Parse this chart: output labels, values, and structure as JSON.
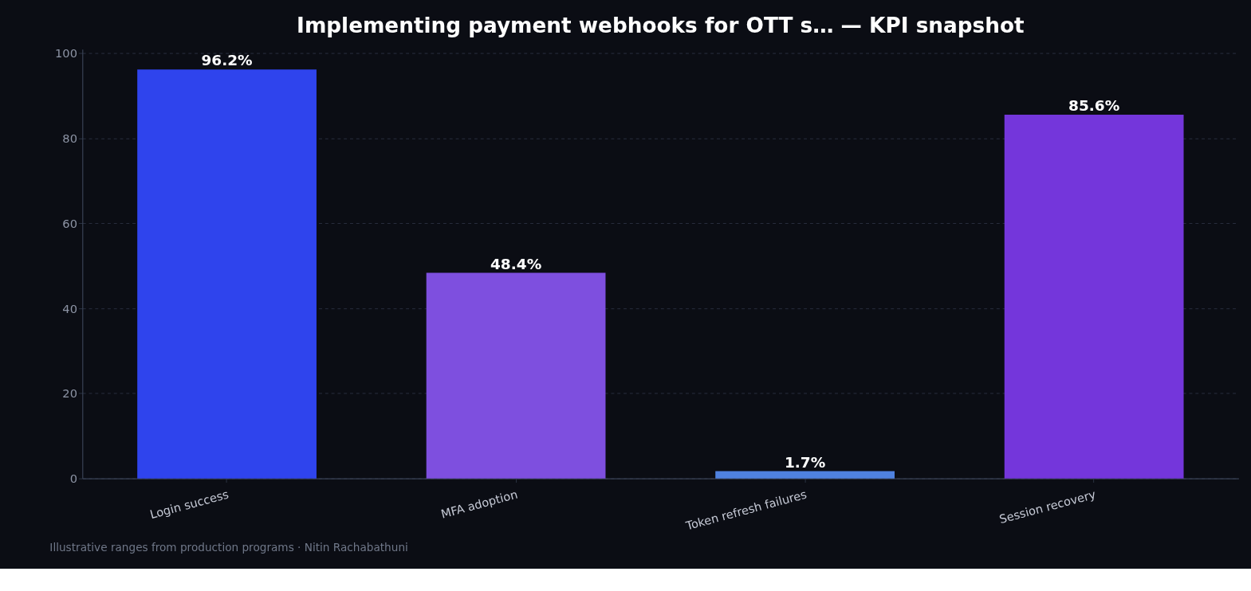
{
  "chart_data": {
    "type": "bar",
    "title": "Implementing payment webhooks for OTT s… — KPI snapshot",
    "categories": [
      "Login success",
      "MFA adoption",
      "Token refresh failures",
      "Session recovery"
    ],
    "values": [
      96.2,
      48.4,
      1.7,
      85.6
    ],
    "value_labels": [
      "96.2%",
      "48.4%",
      "1.7%",
      "85.6%"
    ],
    "colors": [
      "#2f44ed",
      "#7e4fdf",
      "#4f82e0",
      "#7436db"
    ],
    "ylim": [
      0,
      101
    ],
    "yticks": [
      0,
      20,
      40,
      60,
      80,
      100
    ],
    "grid": "y",
    "annotations": [
      "Illustrative ranges from production programs · Nitin Rachabathuni"
    ]
  }
}
